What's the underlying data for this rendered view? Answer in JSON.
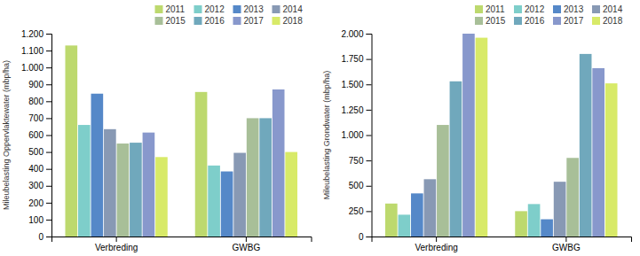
{
  "chart_data": [
    {
      "type": "bar",
      "ylabel": "Mileubelasting Oppervlaktewater (mbp/ha)",
      "categories": [
        "Verbreding",
        "GWBG"
      ],
      "series": [
        {
          "name": "2011",
          "color": "#bdd96e",
          "values": [
            1130,
            855
          ]
        },
        {
          "name": "2012",
          "color": "#7ececa",
          "values": [
            660,
            420
          ]
        },
        {
          "name": "2013",
          "color": "#5588c8",
          "values": [
            845,
            385
          ]
        },
        {
          "name": "2014",
          "color": "#8899b4",
          "values": [
            635,
            495
          ]
        },
        {
          "name": "2015",
          "color": "#a8bf98",
          "values": [
            550,
            700
          ]
        },
        {
          "name": "2016",
          "color": "#70a8bc",
          "values": [
            555,
            700
          ]
        },
        {
          "name": "2017",
          "color": "#8898cc",
          "values": [
            615,
            870
          ]
        },
        {
          "name": "2018",
          "color": "#d8ea68",
          "values": [
            470,
            500
          ]
        }
      ],
      "ylim": [
        0,
        1200
      ],
      "yticks": [
        0,
        100,
        200,
        300,
        400,
        500,
        600,
        700,
        800,
        900,
        {
          "value": 1000,
          "label": "1.000"
        },
        {
          "value": 1100,
          "label": "1.100"
        },
        {
          "value": 1200,
          "label": "1.200"
        }
      ],
      "grid": false,
      "legend": "upper right"
    },
    {
      "type": "bar",
      "ylabel": "Mileubelasting Grondwater (mbp/ha)",
      "categories": [
        "Verbreding",
        "GWBG"
      ],
      "series": [
        {
          "name": "2011",
          "color": "#bdd96e",
          "values": [
            325,
            250
          ]
        },
        {
          "name": "2012",
          "color": "#7ececa",
          "values": [
            215,
            320
          ]
        },
        {
          "name": "2013",
          "color": "#5588c8",
          "values": [
            425,
            170
          ]
        },
        {
          "name": "2014",
          "color": "#8899b4",
          "values": [
            565,
            540
          ]
        },
        {
          "name": "2015",
          "color": "#a8bf98",
          "values": [
            1100,
            775
          ]
        },
        {
          "name": "2016",
          "color": "#70a8bc",
          "values": [
            1530,
            1800
          ]
        },
        {
          "name": "2017",
          "color": "#8898cc",
          "values": [
            2000,
            1660
          ]
        },
        {
          "name": "2018",
          "color": "#d8ea68",
          "values": [
            1960,
            1510
          ]
        }
      ],
      "ylim": [
        0,
        2000
      ],
      "yticks": [
        0,
        250,
        500,
        750,
        {
          "value": 1000,
          "label": "1.000"
        },
        {
          "value": 1250,
          "label": "1.250"
        },
        {
          "value": 1500,
          "label": "1.500"
        },
        {
          "value": 1750,
          "label": "1.750"
        },
        {
          "value": 2000,
          "label": "2.000"
        }
      ],
      "grid": false,
      "legend": "upper right"
    }
  ]
}
